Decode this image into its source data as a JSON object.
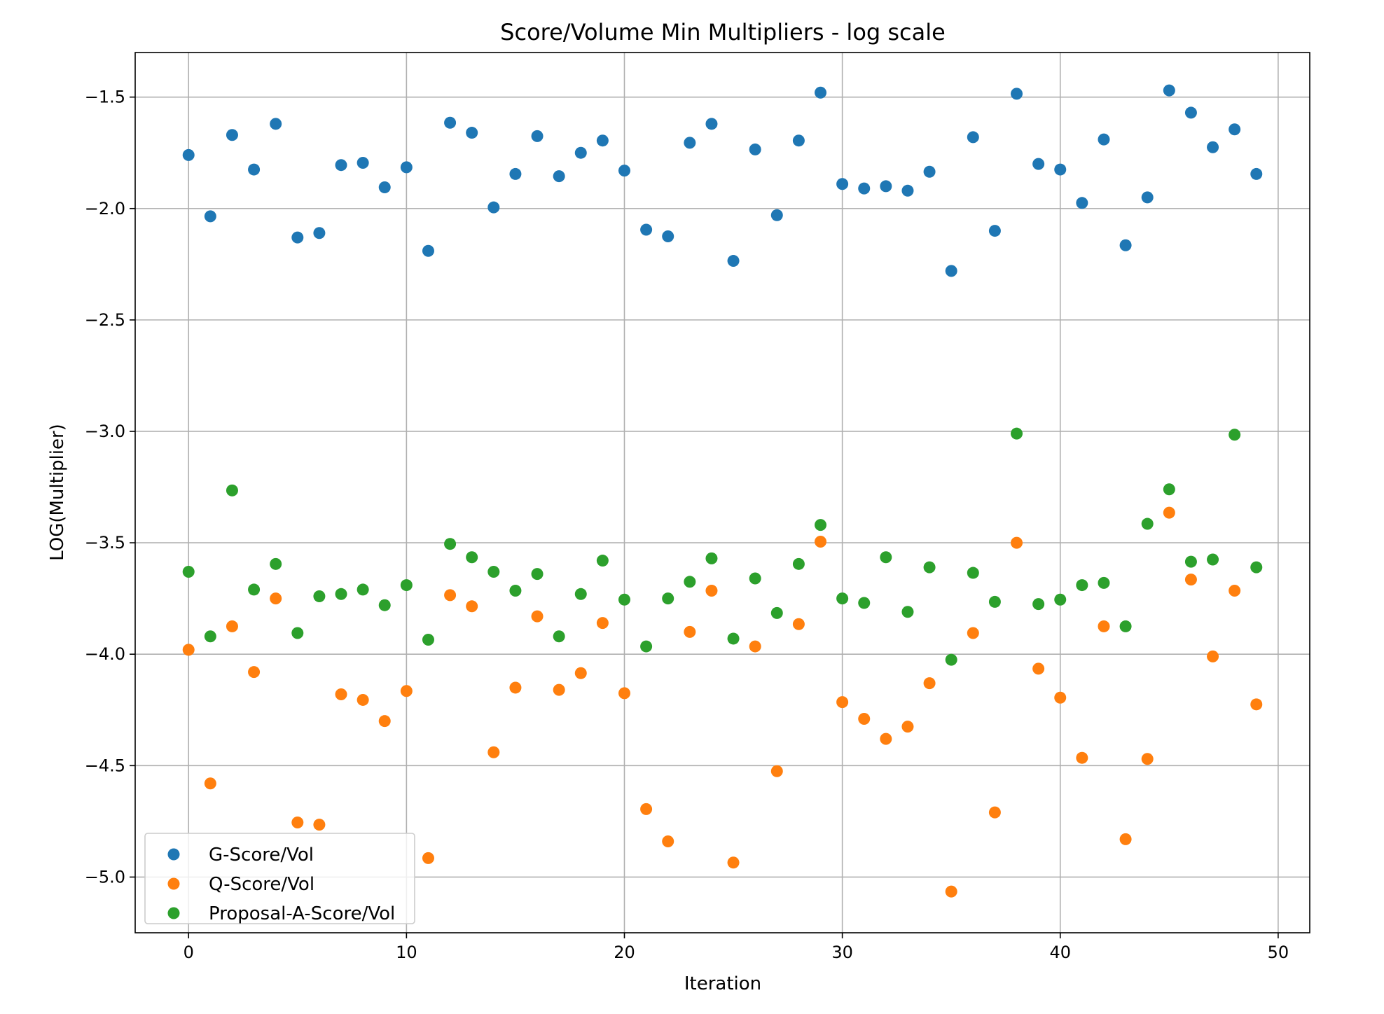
{
  "chart_data": {
    "type": "scatter",
    "title": "Score/Volume Min Multipliers - log scale",
    "xlabel": "Iteration",
    "ylabel": "LOG(Multiplier)",
    "xlim": [
      -2.45,
      51.45
    ],
    "ylim": [
      -5.25,
      -1.3
    ],
    "xticks": [
      0,
      10,
      20,
      30,
      40,
      50
    ],
    "xtick_labels": [
      "0",
      "10",
      "20",
      "30",
      "40",
      "50"
    ],
    "yticks": [
      -1.5,
      -2.0,
      -2.5,
      -3.0,
      -3.5,
      -4.0,
      -4.5,
      -5.0
    ],
    "ytick_labels": [
      "−1.5",
      "−2.0",
      "−2.5",
      "−3.0",
      "−3.5",
      "−4.0",
      "−4.5",
      "−5.0"
    ],
    "grid": true,
    "legend_position": "lower-left",
    "x": [
      0,
      1,
      2,
      3,
      4,
      5,
      6,
      7,
      8,
      9,
      10,
      11,
      12,
      13,
      14,
      15,
      16,
      17,
      18,
      19,
      20,
      21,
      22,
      23,
      24,
      25,
      26,
      27,
      28,
      29,
      30,
      31,
      32,
      33,
      34,
      35,
      36,
      37,
      38,
      39,
      40,
      41,
      42,
      43,
      44,
      45,
      46,
      47,
      48,
      49
    ],
    "series": [
      {
        "name": "G-Score/Vol",
        "color": "#1f77b4",
        "values": [
          -1.76,
          -2.035,
          -1.67,
          -1.825,
          -1.62,
          -2.13,
          -2.11,
          -1.805,
          -1.795,
          -1.905,
          -1.815,
          -2.19,
          -1.615,
          -1.66,
          -1.995,
          -1.845,
          -1.675,
          -1.855,
          -1.75,
          -1.695,
          -1.83,
          -2.095,
          -2.125,
          -1.705,
          -1.62,
          -2.235,
          -1.735,
          -2.03,
          -1.695,
          -1.48,
          -1.89,
          -1.91,
          -1.9,
          -1.92,
          -1.835,
          -2.28,
          -1.68,
          -2.1,
          -1.485,
          -1.8,
          -1.825,
          -1.975,
          -1.69,
          -2.165,
          -1.95,
          -1.47,
          -1.57,
          -1.725,
          -1.645,
          -1.845
        ]
      },
      {
        "name": "Q-Score/Vol",
        "color": "#ff7f0e",
        "values": [
          -3.98,
          -4.58,
          -3.875,
          -4.08,
          -3.75,
          -4.755,
          -4.765,
          -4.18,
          -4.205,
          -4.3,
          -4.165,
          -4.915,
          -3.735,
          -3.785,
          -4.44,
          -4.15,
          -3.83,
          -4.16,
          -4.085,
          -3.86,
          -4.175,
          -4.695,
          -4.84,
          -3.9,
          -3.715,
          -4.935,
          -3.965,
          -4.525,
          -3.865,
          -3.495,
          -4.215,
          -4.29,
          -4.38,
          -4.325,
          -4.13,
          -5.065,
          -3.905,
          -4.71,
          -3.5,
          -4.065,
          -4.195,
          -4.465,
          -3.875,
          -4.83,
          -4.47,
          -3.365,
          -3.665,
          -4.01,
          -3.715,
          -4.225
        ]
      },
      {
        "name": "Proposal-A-Score/Vol",
        "color": "#2ca02c",
        "values": [
          -3.63,
          -3.92,
          -3.265,
          -3.71,
          -3.595,
          -3.905,
          -3.74,
          -3.73,
          -3.71,
          -3.78,
          -3.69,
          -3.935,
          -3.505,
          -3.565,
          -3.63,
          -3.715,
          -3.64,
          -3.92,
          -3.73,
          -3.58,
          -3.755,
          -3.965,
          -3.75,
          -3.675,
          -3.57,
          -3.93,
          -3.66,
          -3.815,
          -3.595,
          -3.42,
          -3.75,
          -3.77,
          -3.565,
          -3.81,
          -3.61,
          -4.025,
          -3.635,
          -3.765,
          -3.01,
          -3.775,
          -3.755,
          -3.69,
          -3.68,
          -3.875,
          -3.415,
          -3.26,
          -3.585,
          -3.575,
          -3.015,
          -3.61
        ]
      }
    ]
  }
}
